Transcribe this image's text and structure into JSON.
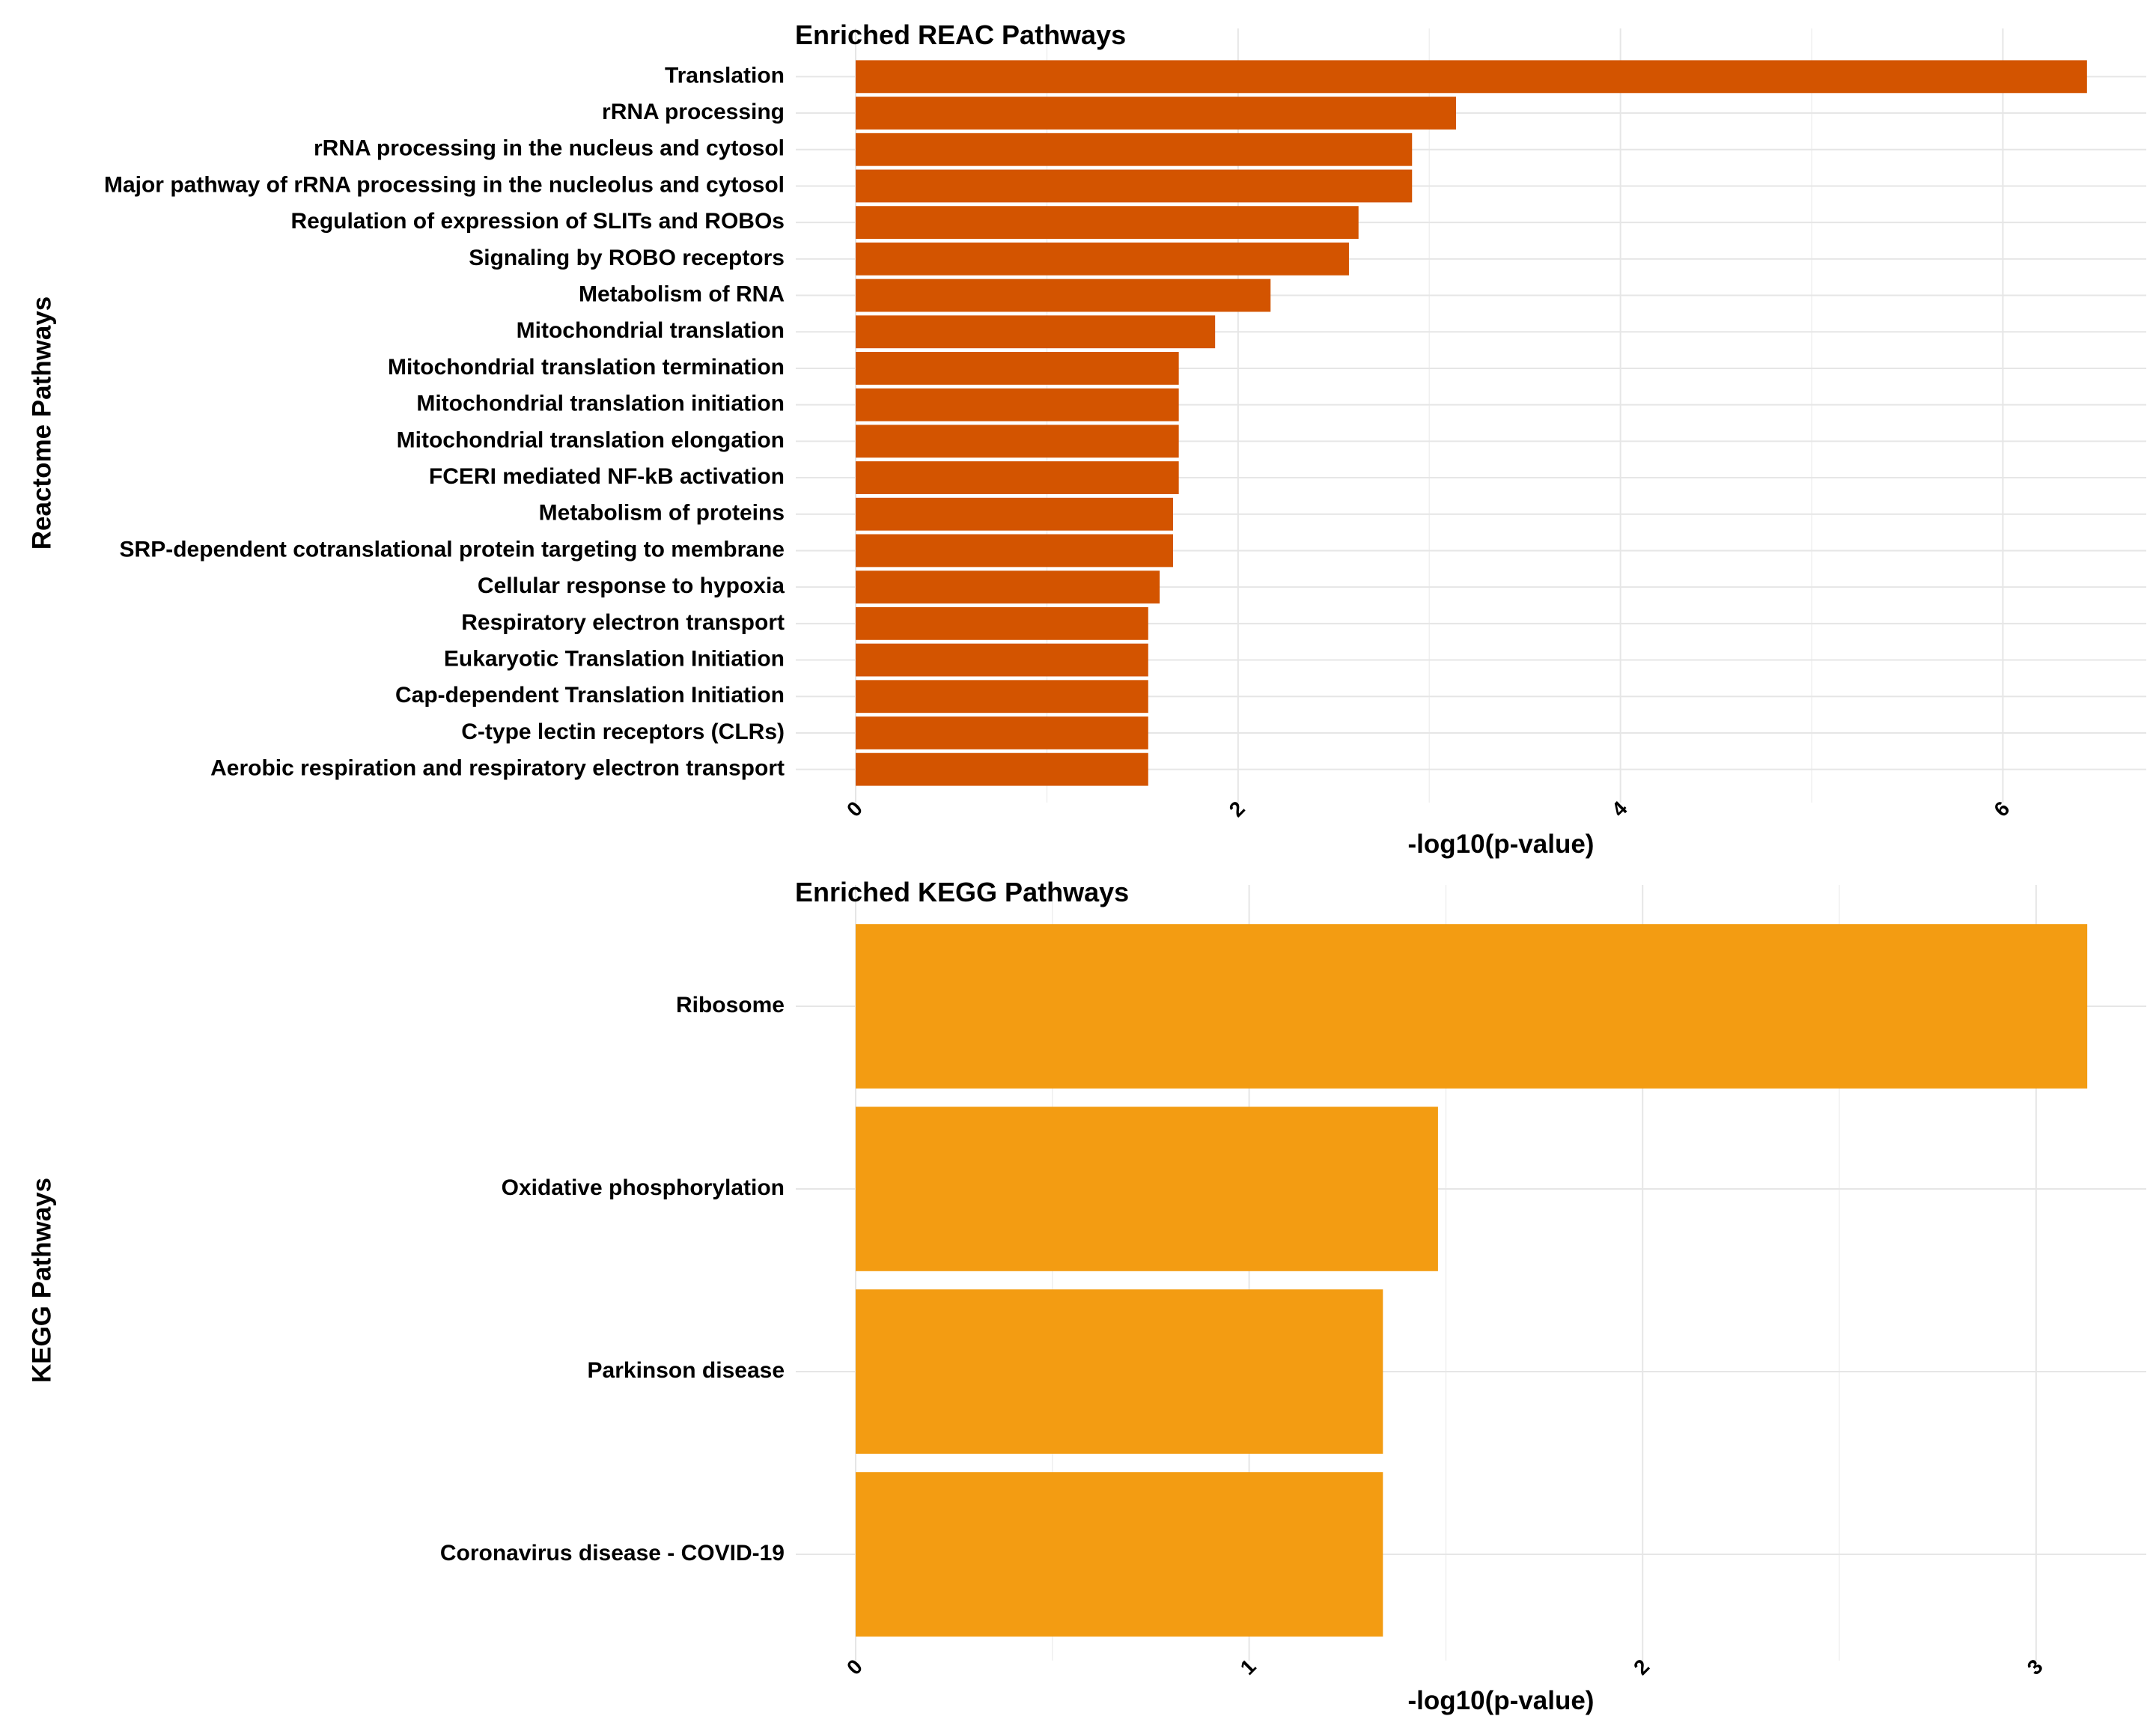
{
  "chart_data": [
    {
      "type": "bar",
      "orientation": "horizontal",
      "title": "Enriched REAC Pathways",
      "xlabel": "-log10(p-value)",
      "ylabel": "Reactome Pathways",
      "xlim": [
        0,
        6.75
      ],
      "xticks": [
        0,
        2,
        4,
        6
      ],
      "bar_color": "#d35400",
      "grid": true,
      "categories": [
        "Translation",
        "rRNA processing",
        "rRNA processing in the nucleus and cytosol",
        "Major pathway of rRNA processing in the nucleolus and cytosol",
        "Regulation of expression of SLITs and ROBOs",
        "Signaling by ROBO receptors",
        "Metabolism of RNA",
        "Mitochondrial translation",
        "Mitochondrial translation termination",
        "Mitochondrial translation initiation",
        "Mitochondrial translation elongation",
        "FCERI mediated NF-kB activation",
        "Metabolism of proteins",
        "SRP-dependent cotranslational protein targeting to membrane",
        "Cellular response to hypoxia",
        "Respiratory electron transport",
        "Eukaryotic Translation Initiation",
        "Cap-dependent Translation Initiation",
        "C-type lectin receptors (CLRs)",
        "Aerobic respiration and respiratory electron transport"
      ],
      "values": [
        6.44,
        3.14,
        2.91,
        2.91,
        2.63,
        2.58,
        2.17,
        1.88,
        1.69,
        1.69,
        1.69,
        1.69,
        1.66,
        1.66,
        1.59,
        1.53,
        1.53,
        1.53,
        1.53,
        1.53
      ]
    },
    {
      "type": "bar",
      "orientation": "horizontal",
      "title": "Enriched KEGG Pathways",
      "xlabel": "-log10(p-value)",
      "ylabel": "KEGG Pathways",
      "xlim": [
        0,
        3.28
      ],
      "xticks": [
        0,
        1,
        2,
        3
      ],
      "bar_color": "#f39c12",
      "grid": true,
      "categories": [
        "Ribosome",
        "Oxidative phosphorylation",
        "Parkinson disease",
        "Coronavirus disease - COVID-19"
      ],
      "values": [
        3.13,
        1.48,
        1.34,
        1.34
      ]
    }
  ]
}
